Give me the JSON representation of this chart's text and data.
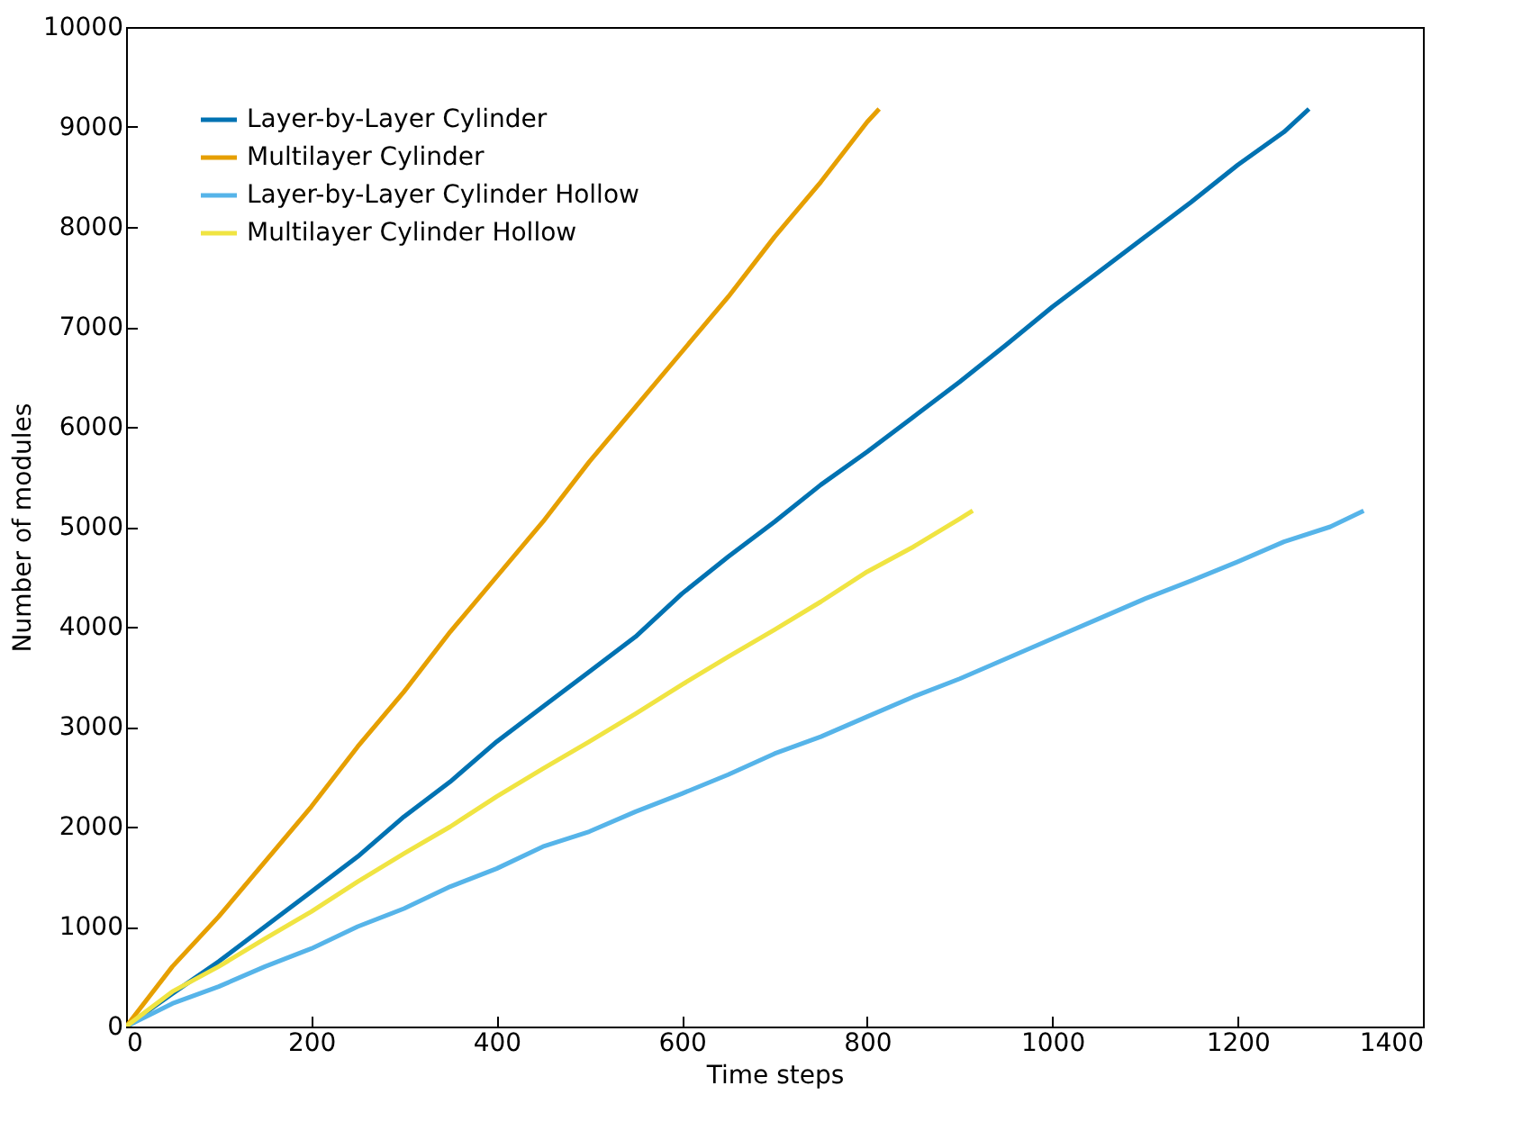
{
  "chart_data": {
    "type": "line",
    "xlabel": "Time steps",
    "ylabel": "Number of modules",
    "xlim": [
      0,
      1400
    ],
    "ylim": [
      0,
      10000
    ],
    "xticks": [
      0,
      200,
      400,
      600,
      800,
      1000,
      1200,
      1400
    ],
    "yticks": [
      0,
      1000,
      2000,
      3000,
      4000,
      5000,
      6000,
      7000,
      8000,
      9000,
      10000
    ],
    "grid": false,
    "legend": "top left",
    "marker": "none",
    "line_style": "solid",
    "series": [
      {
        "name": "Layer-by-Layer Cylinder",
        "color": "#0072b2",
        "x": [
          0,
          50,
          100,
          150,
          200,
          250,
          300,
          350,
          400,
          450,
          500,
          550,
          600,
          650,
          700,
          750,
          800,
          850,
          900,
          950,
          1000,
          1050,
          1100,
          1150,
          1200,
          1250,
          1277
        ],
        "values": [
          0,
          330,
          650,
          1000,
          1350,
          1700,
          2100,
          2450,
          2850,
          3200,
          3550,
          3900,
          4330,
          4700,
          5050,
          5420,
          5750,
          6100,
          6450,
          6820,
          7200,
          7550,
          7900,
          8250,
          8620,
          8950,
          9180
        ]
      },
      {
        "name": "Multilayer Cylinder",
        "color": "#e69f00",
        "x": [
          0,
          50,
          100,
          150,
          200,
          250,
          300,
          350,
          400,
          450,
          500,
          550,
          600,
          650,
          700,
          750,
          800,
          813
        ],
        "values": [
          0,
          600,
          1100,
          1650,
          2200,
          2800,
          3350,
          3950,
          4500,
          5050,
          5650,
          6200,
          6750,
          7300,
          7900,
          8450,
          9050,
          9180
        ]
      },
      {
        "name": "Layer-by-Layer Cylinder Hollow",
        "color": "#56b4e9",
        "x": [
          0,
          50,
          100,
          150,
          200,
          250,
          300,
          350,
          400,
          450,
          500,
          550,
          600,
          650,
          700,
          750,
          800,
          850,
          900,
          950,
          1000,
          1050,
          1100,
          1150,
          1200,
          1250,
          1300,
          1336
        ],
        "values": [
          0,
          230,
          400,
          600,
          780,
          1000,
          1180,
          1400,
          1580,
          1800,
          1950,
          2150,
          2330,
          2520,
          2730,
          2900,
          3100,
          3300,
          3480,
          3680,
          3880,
          4080,
          4280,
          4460,
          4650,
          4850,
          5000,
          5160
        ]
      },
      {
        "name": "Multilayer Cylinder Hollow",
        "color": "#f0e442",
        "x": [
          0,
          50,
          100,
          150,
          200,
          250,
          300,
          350,
          400,
          450,
          500,
          550,
          600,
          650,
          700,
          750,
          800,
          850,
          900,
          914
        ],
        "values": [
          0,
          350,
          600,
          880,
          1150,
          1450,
          1730,
          2000,
          2300,
          2580,
          2850,
          3130,
          3420,
          3700,
          3970,
          4250,
          4550,
          4800,
          5080,
          5160
        ]
      }
    ]
  }
}
